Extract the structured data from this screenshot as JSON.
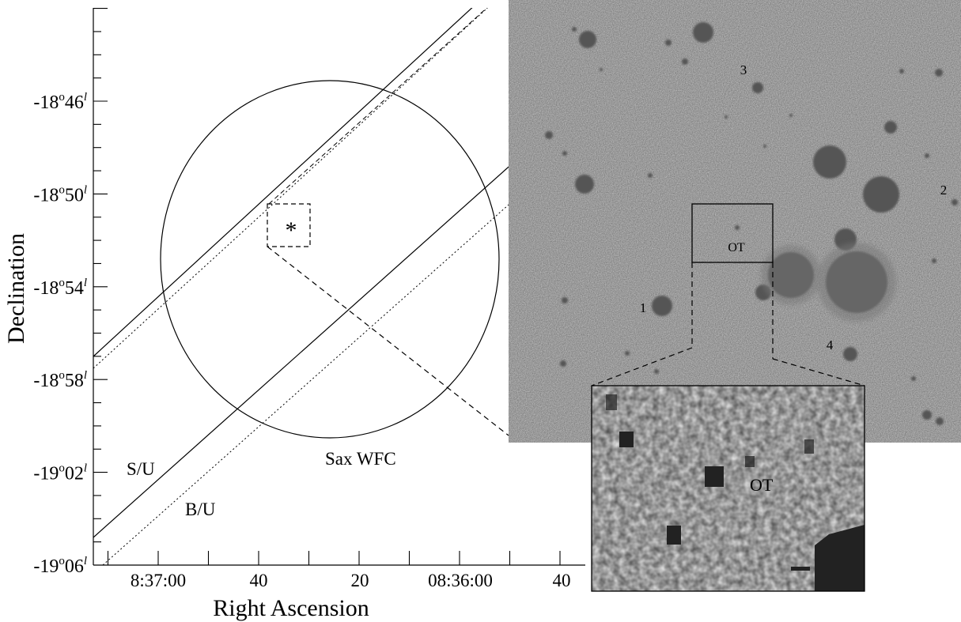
{
  "chart_data": {
    "type": "scatter",
    "xlabel": "Right Ascension",
    "ylabel": "Declination",
    "x_ticks": [
      "8:37:00",
      "40",
      "20",
      "08:36:00",
      "40"
    ],
    "y_ticks": [
      {
        "deg": "-18",
        "min": "46"
      },
      {
        "deg": "-18",
        "min": "50"
      },
      {
        "deg": "-18",
        "min": "54"
      },
      {
        "deg": "-18",
        "min": "58"
      },
      {
        "deg": "-19",
        "min": "02"
      },
      {
        "deg": "-19",
        "min": "06"
      }
    ],
    "deg_mark": "o",
    "min_mark": "l",
    "region_labels": {
      "sax": "Sax WFC",
      "su": "S/U",
      "bu": "B/U",
      "burst_marker": "*"
    },
    "image_labels": {
      "ot": "OT",
      "ot_zoom": "OT",
      "stars": [
        "1",
        "2",
        "3",
        "4"
      ]
    },
    "colors": {
      "image_background": "#cfcfcf",
      "stars": "#5a5a5a"
    }
  }
}
